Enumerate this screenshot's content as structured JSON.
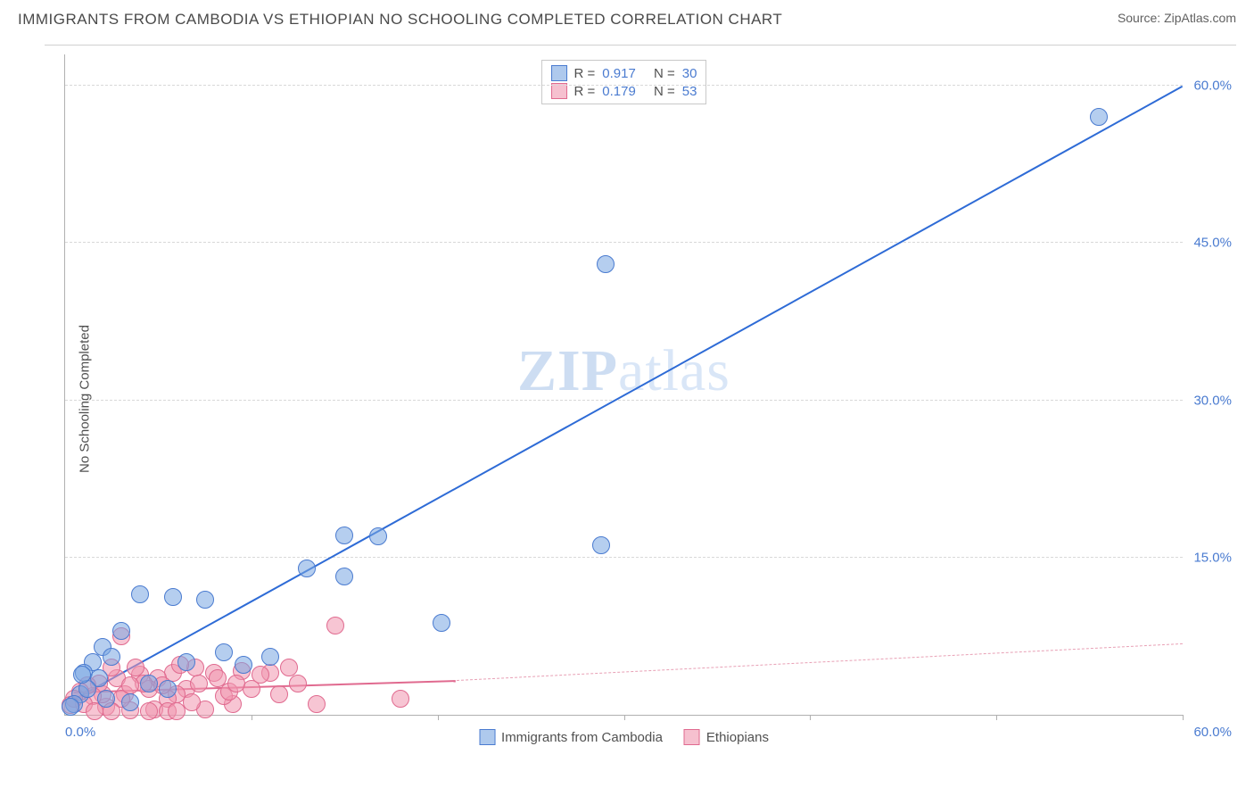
{
  "header": {
    "title": "IMMIGRANTS FROM CAMBODIA VS ETHIOPIAN NO SCHOOLING COMPLETED CORRELATION CHART",
    "source": "Source: ZipAtlas.com"
  },
  "watermark": {
    "zip": "ZIP",
    "atlas": "atlas"
  },
  "chart": {
    "type": "scatter",
    "y_axis_label": "No Schooling Completed",
    "xlim": [
      0,
      60
    ],
    "ylim": [
      0,
      63
    ],
    "x_ticks": [
      0,
      10,
      20,
      30,
      40,
      50,
      60
    ],
    "y_ticks": [
      15,
      30,
      45,
      60
    ],
    "y_tick_labels": [
      "15.0%",
      "30.0%",
      "45.0%",
      "60.0%"
    ],
    "x_tick_label_left": "0.0%",
    "x_tick_label_right": "60.0%",
    "grid_color": "#d8d8d8",
    "background_color": "#ffffff",
    "axis_color": "#b0b0b0",
    "tick_label_color": "#4a7bd0",
    "tick_label_fontsize": 15,
    "axis_label_fontsize": 15,
    "marker_radius": 10,
    "series": [
      {
        "name": "Immigrants from Cambodia",
        "color_fill": "rgba(120,165,225,0.55)",
        "color_stroke": "#4a7bd0",
        "trend_color": "#2e6bd6",
        "trend": {
          "x1": 0.5,
          "y1": 1.5,
          "x2": 60,
          "y2": 60,
          "style": "solid"
        },
        "stats": {
          "R": "0.917",
          "N": "30"
        },
        "points": [
          [
            55.5,
            57.0
          ],
          [
            29.0,
            43.0
          ],
          [
            28.8,
            16.2
          ],
          [
            15.0,
            17.1
          ],
          [
            16.8,
            17.0
          ],
          [
            20.2,
            8.8
          ],
          [
            13.0,
            14.0
          ],
          [
            15.0,
            13.2
          ],
          [
            7.5,
            11.0
          ],
          [
            5.8,
            11.2
          ],
          [
            4.0,
            11.5
          ],
          [
            6.5,
            5.0
          ],
          [
            8.5,
            6.0
          ],
          [
            9.6,
            4.8
          ],
          [
            11.0,
            5.5
          ],
          [
            3.0,
            8.0
          ],
          [
            2.0,
            6.5
          ],
          [
            1.5,
            5.0
          ],
          [
            2.5,
            5.5
          ],
          [
            1.0,
            4.0
          ],
          [
            1.8,
            3.5
          ],
          [
            0.8,
            2.0
          ],
          [
            1.2,
            2.5
          ],
          [
            2.2,
            1.5
          ],
          [
            3.5,
            1.2
          ],
          [
            0.5,
            1.0
          ],
          [
            0.3,
            0.8
          ],
          [
            4.5,
            3.0
          ],
          [
            5.5,
            2.5
          ],
          [
            0.9,
            3.8
          ]
        ]
      },
      {
        "name": "Ethiopians",
        "color_fill": "rgba(240,150,175,0.55)",
        "color_stroke": "#e06a8f",
        "trend_color": "#e06a8f",
        "trend_solid": {
          "x1": 0.5,
          "y1": 2.2,
          "x2": 21,
          "y2": 3.3,
          "style": "solid"
        },
        "trend_dashed": {
          "x1": 21,
          "y1": 3.3,
          "x2": 60,
          "y2": 6.8,
          "style": "dashed"
        },
        "stats": {
          "R": "0.179",
          "N": "53"
        },
        "points": [
          [
            14.5,
            8.5
          ],
          [
            18.0,
            1.5
          ],
          [
            13.5,
            1.0
          ],
          [
            12.0,
            4.5
          ],
          [
            11.0,
            4.0
          ],
          [
            10.0,
            2.5
          ],
          [
            9.5,
            4.2
          ],
          [
            9.0,
            1.0
          ],
          [
            8.5,
            1.8
          ],
          [
            8.0,
            4.0
          ],
          [
            7.5,
            0.5
          ],
          [
            7.0,
            4.5
          ],
          [
            6.5,
            2.5
          ],
          [
            6.0,
            2.0
          ],
          [
            5.8,
            4.0
          ],
          [
            5.5,
            1.5
          ],
          [
            5.0,
            3.5
          ],
          [
            4.8,
            0.5
          ],
          [
            4.5,
            2.5
          ],
          [
            4.0,
            3.8
          ],
          [
            3.8,
            4.5
          ],
          [
            3.5,
            0.4
          ],
          [
            3.2,
            2.0
          ],
          [
            3.0,
            1.5
          ],
          [
            2.8,
            3.5
          ],
          [
            2.5,
            4.5
          ],
          [
            2.2,
            0.8
          ],
          [
            2.0,
            2.0
          ],
          [
            1.8,
            3.0
          ],
          [
            1.5,
            1.8
          ],
          [
            1.2,
            2.8
          ],
          [
            1.0,
            1.0
          ],
          [
            0.8,
            2.2
          ],
          [
            0.5,
            1.5
          ],
          [
            0.3,
            0.9
          ],
          [
            3.0,
            7.5
          ],
          [
            4.2,
            3.0
          ],
          [
            5.2,
            2.8
          ],
          [
            6.2,
            4.8
          ],
          [
            6.8,
            1.2
          ],
          [
            7.2,
            3.0
          ],
          [
            8.2,
            3.5
          ],
          [
            8.8,
            2.2
          ],
          [
            9.2,
            3.0
          ],
          [
            10.5,
            3.8
          ],
          [
            11.5,
            2.0
          ],
          [
            12.5,
            3.0
          ],
          [
            2.5,
            0.3
          ],
          [
            1.6,
            0.3
          ],
          [
            4.5,
            0.3
          ],
          [
            5.5,
            0.3
          ],
          [
            6.0,
            0.3
          ],
          [
            3.5,
            2.8
          ]
        ]
      }
    ]
  },
  "stats_legend": {
    "rows": [
      {
        "swatch": "blue",
        "R_label": "R =",
        "R_val": "0.917",
        "N_label": "N =",
        "N_val": "30"
      },
      {
        "swatch": "pink",
        "R_label": "R =",
        "R_val": "0.179",
        "N_label": "N =",
        "N_val": "53"
      }
    ]
  },
  "bottom_legend": {
    "items": [
      {
        "swatch": "blue",
        "label": "Immigrants from Cambodia"
      },
      {
        "swatch": "pink",
        "label": "Ethiopians"
      }
    ]
  }
}
